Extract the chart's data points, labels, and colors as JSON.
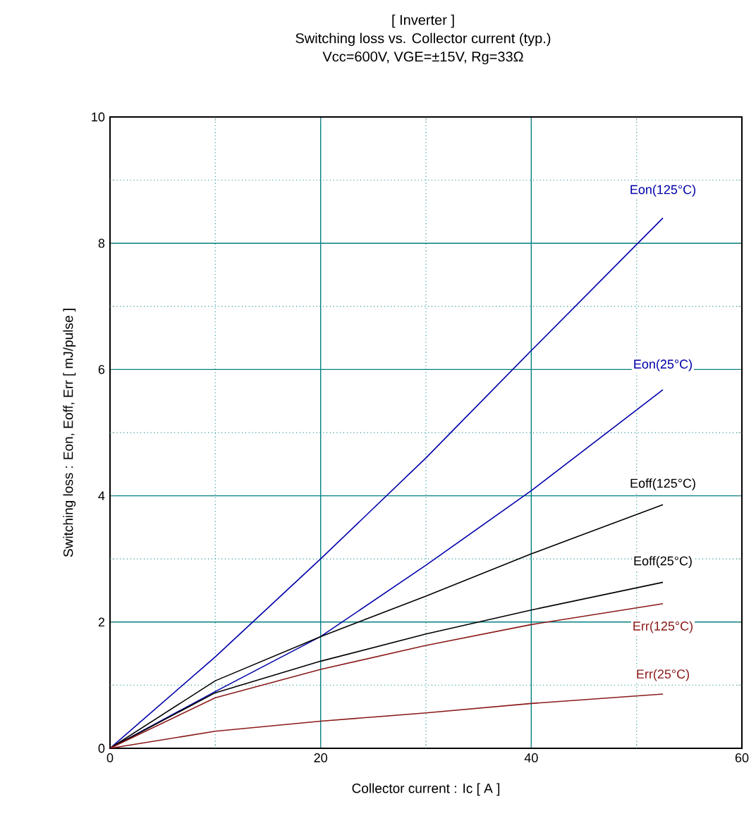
{
  "chart_data": {
    "type": "line",
    "title": "[ Inverter ]",
    "subtitle": "Switching loss  vs.  Collector current  (typ.)\nVcc=600V, VGE=±15V, Rg=33Ω",
    "xlabel": "Collector current  :  Ic  [ A ]",
    "ylabel": "Switching loss  :  Eon, Eoff, Err  [ mJ/pulse ]",
    "xlim": [
      0,
      60
    ],
    "ylim": [
      0,
      10
    ],
    "xticks": [
      0,
      {
        "value": 10,
        "label": null
      },
      20,
      {
        "value": 30,
        "label": null
      },
      40,
      {
        "value": 50,
        "label": null
      },
      60
    ],
    "yticks": [
      0,
      {
        "value": 1,
        "label": null
      },
      2,
      {
        "value": 3,
        "label": null
      },
      4,
      {
        "value": 5,
        "label": null
      },
      6,
      {
        "value": 7,
        "label": null
      },
      8,
      {
        "value": 9,
        "label": null
      },
      10
    ],
    "grid": true,
    "legend": false,
    "marker": "none",
    "line_style": "solid",
    "x": [
      0,
      10,
      20,
      30,
      40,
      52.5
    ],
    "series": [
      {
        "name": "Eon(125°C)",
        "color": "#0000aa",
        "values": [
          0,
          1.45,
          3.0,
          4.6,
          6.3,
          8.4
        ]
      },
      {
        "name": "Eon(25°C)",
        "color": "#0000aa",
        "values": [
          0,
          0.9,
          1.77,
          2.9,
          4.08,
          5.68
        ]
      },
      {
        "name": "Eoff(125°C)",
        "color": "#000000",
        "values": [
          0,
          1.07,
          1.77,
          2.41,
          3.08,
          3.86
        ]
      },
      {
        "name": "Eoff(25°C)",
        "color": "#000000",
        "values": [
          0,
          0.88,
          1.38,
          1.81,
          2.19,
          2.63
        ]
      },
      {
        "name": "Err(125°C)",
        "color": "#8b1a1a",
        "values": [
          0,
          0.8,
          1.25,
          1.63,
          1.96,
          2.29
        ]
      },
      {
        "name": "Err(25°C)",
        "color": "#8b1a1a",
        "values": [
          0,
          0.27,
          0.43,
          0.56,
          0.71,
          0.86
        ]
      }
    ]
  }
}
